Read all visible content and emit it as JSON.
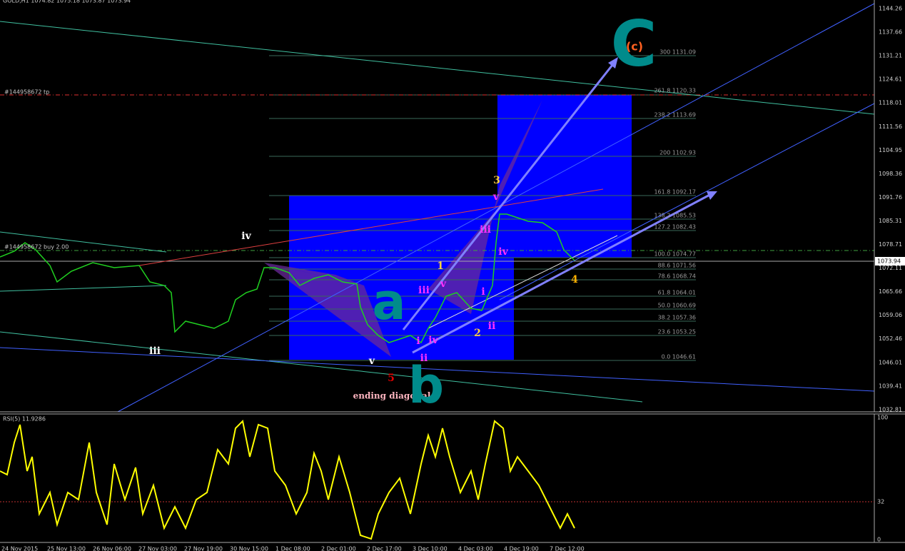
{
  "header": {
    "title": "GOLD,H1  1074.82 1075.18 1073.87 1073.94"
  },
  "price_axis": [
    "1144.26",
    "1137.66",
    "1131.21",
    "1124.61",
    "1118.01",
    "1111.56",
    "1104.95",
    "1098.36",
    "1091.76",
    "1085.31",
    "1078.71",
    "1072.11",
    "1065.66",
    "1059.06",
    "1052.46",
    "1046.01",
    "1039.41",
    "1032.81"
  ],
  "current_price": "1073.94",
  "orders": [
    "#144958672 tp",
    "#144958672 buy 2.00"
  ],
  "fib_levels": [
    "300 1131.09",
    "261.8 1120.33",
    "238.2 1113.69",
    "200 1102.93",
    "161.8 1092.17",
    "138.2 1085.53",
    "127.2 1082.43",
    "100.0 1074.77",
    "88.6 1071.56",
    "78.6 1068.74",
    "61.8 1064.01",
    "50.0 1060.69",
    "38.2 1057.36",
    "23.6 1053.25",
    "0.0 1046.61"
  ],
  "wave_labels": [
    "iv",
    "iii",
    "v",
    "5",
    "ending diagonal",
    "1",
    "2",
    "3",
    "4",
    "v",
    "iii",
    "iv",
    "iii",
    "v",
    "i",
    "ii",
    "i",
    "iv",
    "ii",
    "a",
    "b",
    "C",
    "(c)"
  ],
  "indicator": {
    "title": "RSI(5) 11.9286",
    "axis": [
      "100",
      "32",
      "0"
    ]
  },
  "time_axis": [
    "24 Nov 2015",
    "25 Nov 13:00",
    "26 Nov 06:00",
    "27 Nov 03:00",
    "27 Nov 19:00",
    "30 Nov 15:00",
    "1 Dec 08:00",
    "2 Dec 01:00",
    "2 Dec 17:00",
    "3 Dec 10:00",
    "4 Dec 03:00",
    "4 Dec 19:00",
    "7 Dec 12:00"
  ]
}
